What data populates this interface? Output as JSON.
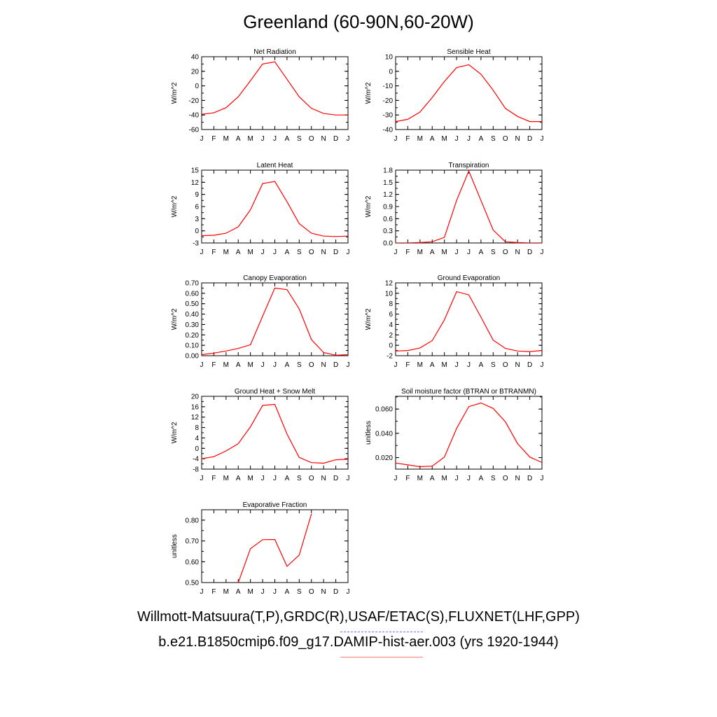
{
  "page": {
    "title": "Greenland (60-90N,60-20W)",
    "legend": [
      {
        "label": "Willmott-Matsuura(T,P),GRDC(R),USAF/ETAC(S),FLUXNET(LHF,GPP)",
        "color": "#6f6fff",
        "style": "dashed"
      },
      {
        "label": "b.e21.B1850cmip6.f09_g17.DAMIP-hist-aer.003 (yrs 1920-1944)",
        "color": "#ff8080",
        "style": "solid"
      }
    ]
  },
  "chart_data": [
    {
      "type": "line",
      "title": "Net Radiation",
      "ylabel": "W/m^2",
      "x": [
        "J",
        "F",
        "M",
        "A",
        "M",
        "J",
        "J",
        "A",
        "S",
        "O",
        "N",
        "D",
        "J"
      ],
      "ylim": [
        -60,
        40
      ],
      "yticks": [
        "40",
        "20",
        "0",
        "-20",
        "-40",
        "-60"
      ],
      "series": [
        {
          "color": "#ff0000",
          "values": [
            -39,
            -37,
            -30,
            -15,
            7,
            30,
            33,
            9,
            -15,
            -31,
            -38,
            -40,
            -40
          ]
        }
      ]
    },
    {
      "type": "line",
      "title": "Sensible Heat",
      "ylabel": "W/m^2",
      "x": [
        "J",
        "F",
        "M",
        "A",
        "M",
        "J",
        "J",
        "A",
        "S",
        "O",
        "N",
        "D",
        "J"
      ],
      "ylim": [
        -40,
        10
      ],
      "yticks": [
        "10",
        "0",
        "-10",
        "-20",
        "-30",
        "-40"
      ],
      "series": [
        {
          "color": "#ff0000",
          "values": [
            -34.5,
            -33,
            -28,
            -18,
            -7,
            2.5,
            4.5,
            -2,
            -13,
            -25.5,
            -31,
            -34.5,
            -34.5
          ]
        }
      ]
    },
    {
      "type": "line",
      "title": "Latent Heat",
      "ylabel": "W/m^2",
      "x": [
        "J",
        "F",
        "M",
        "A",
        "M",
        "J",
        "J",
        "A",
        "S",
        "O",
        "N",
        "D",
        "J"
      ],
      "ylim": [
        -3,
        15
      ],
      "yticks": [
        "15",
        "12",
        "9",
        "6",
        "3",
        "0",
        "-3"
      ],
      "series": [
        {
          "color": "#ff0000",
          "values": [
            -1.2,
            -1.1,
            -0.6,
            1,
            5.2,
            11.7,
            12.2,
            7.2,
            1.8,
            -0.6,
            -1.3,
            -1.4,
            -1.3
          ]
        }
      ]
    },
    {
      "type": "line",
      "title": "Transpiration",
      "ylabel": "W/m^2",
      "x": [
        "J",
        "F",
        "M",
        "A",
        "M",
        "J",
        "J",
        "A",
        "S",
        "O",
        "N",
        "D",
        "J"
      ],
      "ylim": [
        0,
        1.8
      ],
      "yticks": [
        "1.8",
        "1.5",
        "1.2",
        "0.9",
        "0.6",
        "0.3",
        "0.0"
      ],
      "series": [
        {
          "color": "#ff0000",
          "values": [
            0,
            0,
            0.01,
            0.03,
            0.14,
            1.05,
            1.78,
            1.05,
            0.32,
            0.03,
            0.01,
            0,
            0
          ]
        }
      ]
    },
    {
      "type": "line",
      "title": "Canopy Evaporation",
      "ylabel": "W/m^2",
      "x": [
        "J",
        "F",
        "M",
        "A",
        "M",
        "J",
        "J",
        "A",
        "S",
        "O",
        "N",
        "D",
        "J"
      ],
      "ylim": [
        0,
        0.7
      ],
      "yticks": [
        "0.70",
        "0.60",
        "0.50",
        "0.40",
        "0.30",
        "0.20",
        "0.10",
        "0.00"
      ],
      "series": [
        {
          "color": "#ff0000",
          "values": [
            0.01,
            0.025,
            0.045,
            0.07,
            0.105,
            0.38,
            0.65,
            0.635,
            0.45,
            0.155,
            0.03,
            0.005,
            0.01
          ]
        }
      ]
    },
    {
      "type": "line",
      "title": "Ground Evaporation",
      "ylabel": "W/m^2",
      "x": [
        "J",
        "F",
        "M",
        "A",
        "M",
        "J",
        "J",
        "A",
        "S",
        "O",
        "N",
        "D",
        "J"
      ],
      "ylim": [
        -2,
        12
      ],
      "yticks": [
        "12",
        "10",
        "8",
        "6",
        "4",
        "2",
        "0",
        "-2"
      ],
      "series": [
        {
          "color": "#ff0000",
          "values": [
            -1.1,
            -1,
            -0.5,
            0.9,
            4.9,
            10.3,
            9.7,
            5.4,
            1,
            -0.6,
            -1.1,
            -1.2,
            -1
          ]
        }
      ]
    },
    {
      "type": "line",
      "title": "Ground Heat + Snow Melt",
      "ylabel": "W/m^2",
      "x": [
        "J",
        "F",
        "M",
        "A",
        "M",
        "J",
        "J",
        "A",
        "S",
        "O",
        "N",
        "D",
        "J"
      ],
      "ylim": [
        -8,
        20
      ],
      "yticks": [
        "20",
        "16",
        "12",
        "8",
        "4",
        "0",
        "-4",
        "-8"
      ],
      "series": [
        {
          "color": "#ff0000",
          "values": [
            -4,
            -3.2,
            -1,
            1.8,
            8.3,
            16.5,
            16.9,
            5.5,
            -3.5,
            -5.5,
            -5.7,
            -4.4,
            -4.2
          ]
        }
      ]
    },
    {
      "type": "line",
      "title": "Soil moisture factor (BTRAN or BTRANMN)",
      "ylabel": "unitless",
      "x": [
        "J",
        "F",
        "M",
        "A",
        "M",
        "J",
        "J",
        "A",
        "S",
        "O",
        "N",
        "D",
        "J"
      ],
      "ylim": [
        0.0105,
        0.0705
      ],
      "yticks": [
        "0.060",
        "0.040",
        "0.020"
      ],
      "series": [
        {
          "color": "#ff0000",
          "values": [
            0.0155,
            0.014,
            0.0125,
            0.013,
            0.0205,
            0.044,
            0.062,
            0.065,
            0.0605,
            0.0495,
            0.0315,
            0.0205,
            0.016
          ]
        }
      ]
    },
    {
      "type": "line",
      "title": "Evaporative Fraction",
      "ylabel": "unitless",
      "x": [
        "J",
        "F",
        "M",
        "A",
        "M",
        "J",
        "J",
        "A",
        "S",
        "O",
        "N",
        "D",
        "J"
      ],
      "ylim": [
        0.5,
        0.85
      ],
      "yticks": [
        "0.80",
        "0.70",
        "0.60",
        "0.50"
      ],
      "series": [
        {
          "color": "#ff0000",
          "values": [
            null,
            null,
            null,
            0.5,
            0.663,
            0.706,
            0.707,
            0.578,
            0.632,
            0.83,
            null,
            null,
            null
          ]
        }
      ]
    }
  ]
}
